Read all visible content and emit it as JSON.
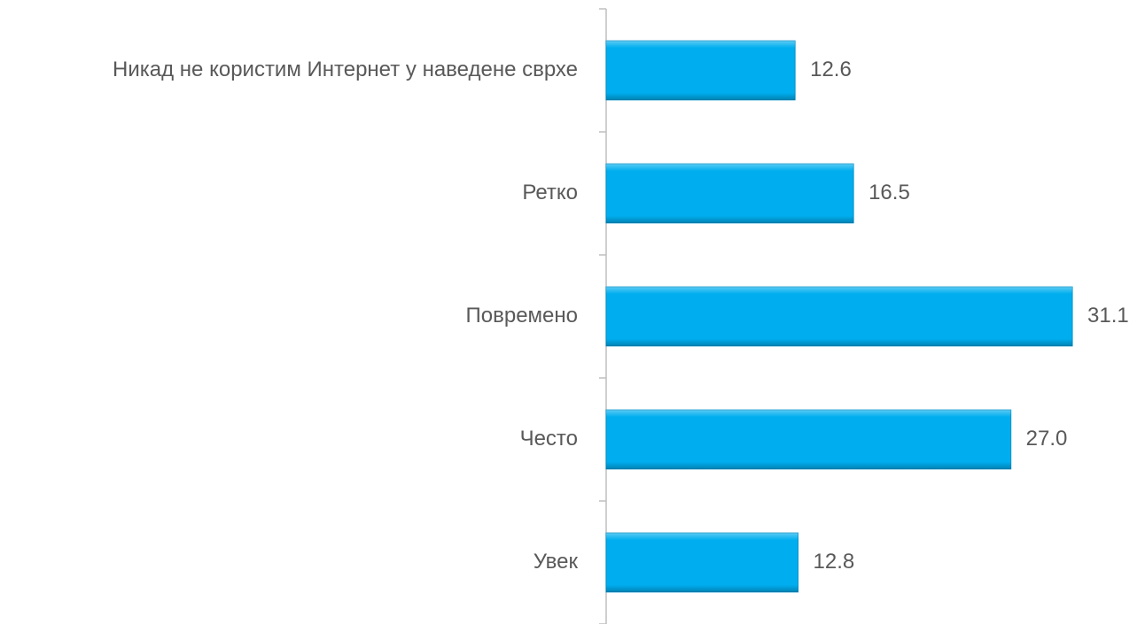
{
  "chart_data": {
    "type": "hbar",
    "categories": [
      "Никад не користим Интернет у наведене сврхе",
      "Ретко",
      "Повремено",
      "Често",
      "Увек"
    ],
    "values": [
      12.6,
      16.5,
      31.1,
      27.0,
      12.8
    ],
    "value_labels": [
      "12.6",
      "16.5",
      "31.1",
      "27.0",
      "12.8"
    ],
    "color": "#00aeef",
    "xlim": [
      0,
      35
    ]
  }
}
